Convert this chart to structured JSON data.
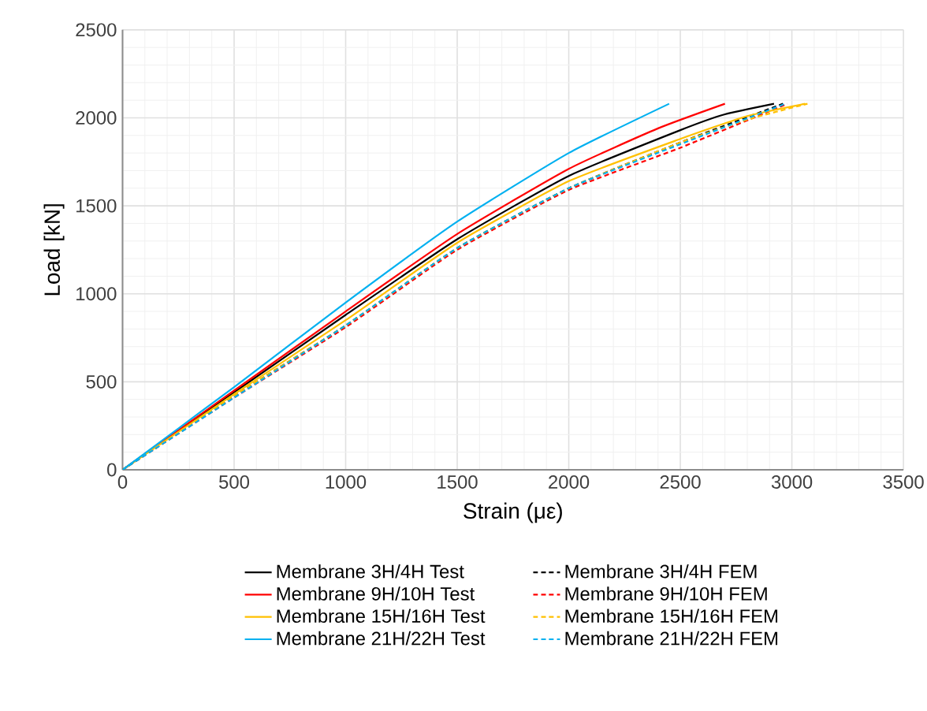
{
  "chart_data": {
    "type": "line",
    "xlabel": "Strain (με)",
    "ylabel": "Load [kN]",
    "xlim": [
      0,
      3500
    ],
    "ylim": [
      0,
      2500
    ],
    "xticks": [
      0,
      500,
      1000,
      1500,
      2000,
      2500,
      3000,
      3500
    ],
    "yticks": [
      0,
      500,
      1000,
      1500,
      2000,
      2500
    ],
    "grid": true,
    "legend": "bottom",
    "marker": "none",
    "series": [
      {
        "name": "Membrane 3H/4H Test",
        "color": "#000000",
        "line_style": "solid",
        "x": [
          0,
          500,
          1000,
          1500,
          2000,
          2500,
          2700,
          2920
        ],
        "values": [
          0,
          440,
          880,
          1310,
          1670,
          1930,
          2020,
          2080
        ]
      },
      {
        "name": "Membrane 3H/4H FEM",
        "color": "#000000",
        "line_style": "dashed",
        "x": [
          0,
          500,
          1000,
          1500,
          2000,
          2500,
          2960
        ],
        "values": [
          0,
          420,
          820,
          1260,
          1600,
          1860,
          2080
        ]
      },
      {
        "name": "Membrane 9H/10H Test",
        "color": "#ff0000",
        "line_style": "solid",
        "x": [
          0,
          500,
          1000,
          1500,
          2000,
          2400,
          2700
        ],
        "values": [
          0,
          450,
          900,
          1340,
          1710,
          1940,
          2080
        ]
      },
      {
        "name": "Membrane 9H/10H FEM",
        "color": "#ff0000",
        "line_style": "dashed",
        "x": [
          0,
          500,
          1000,
          1500,
          2000,
          2500,
          2980
        ],
        "values": [
          0,
          410,
          810,
          1250,
          1590,
          1830,
          2080
        ]
      },
      {
        "name": "Membrane 15H/16H Test",
        "color": "#ffc000",
        "line_style": "solid",
        "x": [
          0,
          500,
          1000,
          1500,
          2000,
          2500,
          2800,
          3060
        ],
        "values": [
          0,
          430,
          850,
          1290,
          1640,
          1880,
          2010,
          2080
        ]
      },
      {
        "name": "Membrane 15H/16H FEM",
        "color": "#ffc000",
        "line_style": "dashed",
        "x": [
          0,
          500,
          1000,
          1500,
          2000,
          2500,
          2800,
          3070
        ],
        "values": [
          0,
          420,
          820,
          1260,
          1600,
          1860,
          1990,
          2080
        ]
      },
      {
        "name": "Membrane 21H/22H Test",
        "color": "#00b0f0",
        "line_style": "solid",
        "x": [
          0,
          500,
          1000,
          1500,
          2000,
          2450
        ],
        "values": [
          0,
          470,
          950,
          1410,
          1800,
          2080
        ]
      },
      {
        "name": "Membrane 21H/22H FEM",
        "color": "#00b0f0",
        "line_style": "dashed",
        "x": [
          0,
          500,
          1000,
          1500,
          2000,
          2500,
          2970
        ],
        "values": [
          0,
          410,
          820,
          1260,
          1600,
          1850,
          2080
        ]
      }
    ]
  }
}
